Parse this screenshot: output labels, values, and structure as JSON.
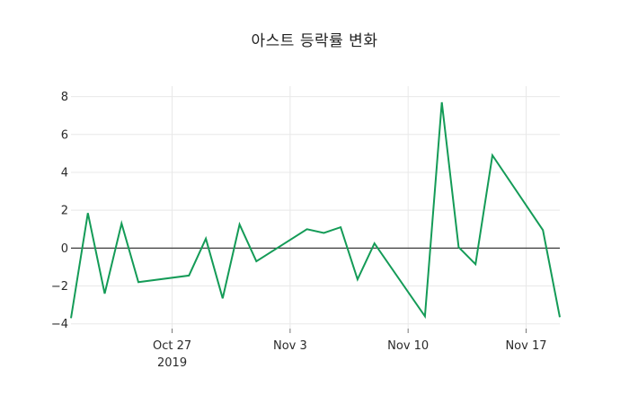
{
  "title": "아스트 등락률 변화",
  "chart_data": {
    "type": "line",
    "title": "아스트 등락률 변화",
    "xlabel": "",
    "ylabel": "",
    "grid": true,
    "legend": "none",
    "zero_line": true,
    "ylim": [
      -4.25,
      8.55
    ],
    "xlim_days": [
      0,
      29
    ],
    "y_ticks": [
      {
        "value": 8,
        "label": "8"
      },
      {
        "value": 6,
        "label": "6"
      },
      {
        "value": 4,
        "label": "4"
      },
      {
        "value": 2,
        "label": "2"
      },
      {
        "value": 0,
        "label": "0"
      },
      {
        "value": -2,
        "label": "−2"
      },
      {
        "value": -4,
        "label": "−4"
      }
    ],
    "x_ticks": [
      {
        "day": 6,
        "label": "Oct 27",
        "sublabel": "2019"
      },
      {
        "day": 13,
        "label": "Nov 3",
        "sublabel": ""
      },
      {
        "day": 20,
        "label": "Nov 10",
        "sublabel": ""
      },
      {
        "day": 27,
        "label": "Nov 17",
        "sublabel": ""
      }
    ],
    "series": [
      {
        "name": "아스트 등락률",
        "color": "#149b57",
        "points": [
          {
            "date": "2019-10-21",
            "day": 0,
            "value": -3.7
          },
          {
            "date": "2019-10-22",
            "day": 1,
            "value": 1.85
          },
          {
            "date": "2019-10-23",
            "day": 2,
            "value": -2.4
          },
          {
            "date": "2019-10-24",
            "day": 3,
            "value": 1.3
          },
          {
            "date": "2019-10-25",
            "day": 4,
            "value": -1.8
          },
          {
            "date": "2019-10-28",
            "day": 7,
            "value": -1.45
          },
          {
            "date": "2019-10-29",
            "day": 8,
            "value": 0.5
          },
          {
            "date": "2019-10-30",
            "day": 9,
            "value": -2.65
          },
          {
            "date": "2019-10-31",
            "day": 10,
            "value": 1.25
          },
          {
            "date": "2019-11-01",
            "day": 11,
            "value": -0.7
          },
          {
            "date": "2019-11-04",
            "day": 14,
            "value": 1.0
          },
          {
            "date": "2019-11-05",
            "day": 15,
            "value": 0.8
          },
          {
            "date": "2019-11-06",
            "day": 16,
            "value": 1.1
          },
          {
            "date": "2019-11-07",
            "day": 17,
            "value": -1.65
          },
          {
            "date": "2019-11-08",
            "day": 18,
            "value": 0.25
          },
          {
            "date": "2019-11-11",
            "day": 21,
            "value": -3.6
          },
          {
            "date": "2019-11-12",
            "day": 22,
            "value": 7.7
          },
          {
            "date": "2019-11-13",
            "day": 23,
            "value": 0.05
          },
          {
            "date": "2019-11-14",
            "day": 24,
            "value": -0.85
          },
          {
            "date": "2019-11-15",
            "day": 25,
            "value": 4.9
          },
          {
            "date": "2019-11-18",
            "day": 28,
            "value": 0.95
          },
          {
            "date": "2019-11-19",
            "day": 29,
            "value": -3.65
          }
        ]
      }
    ],
    "colors": {
      "line": "#149b57",
      "grid": "#e8e8e8",
      "zero_line": "#3d3d3d",
      "tick_mark": "#757575",
      "text": "#2a2a2a",
      "background": "#ffffff"
    }
  }
}
